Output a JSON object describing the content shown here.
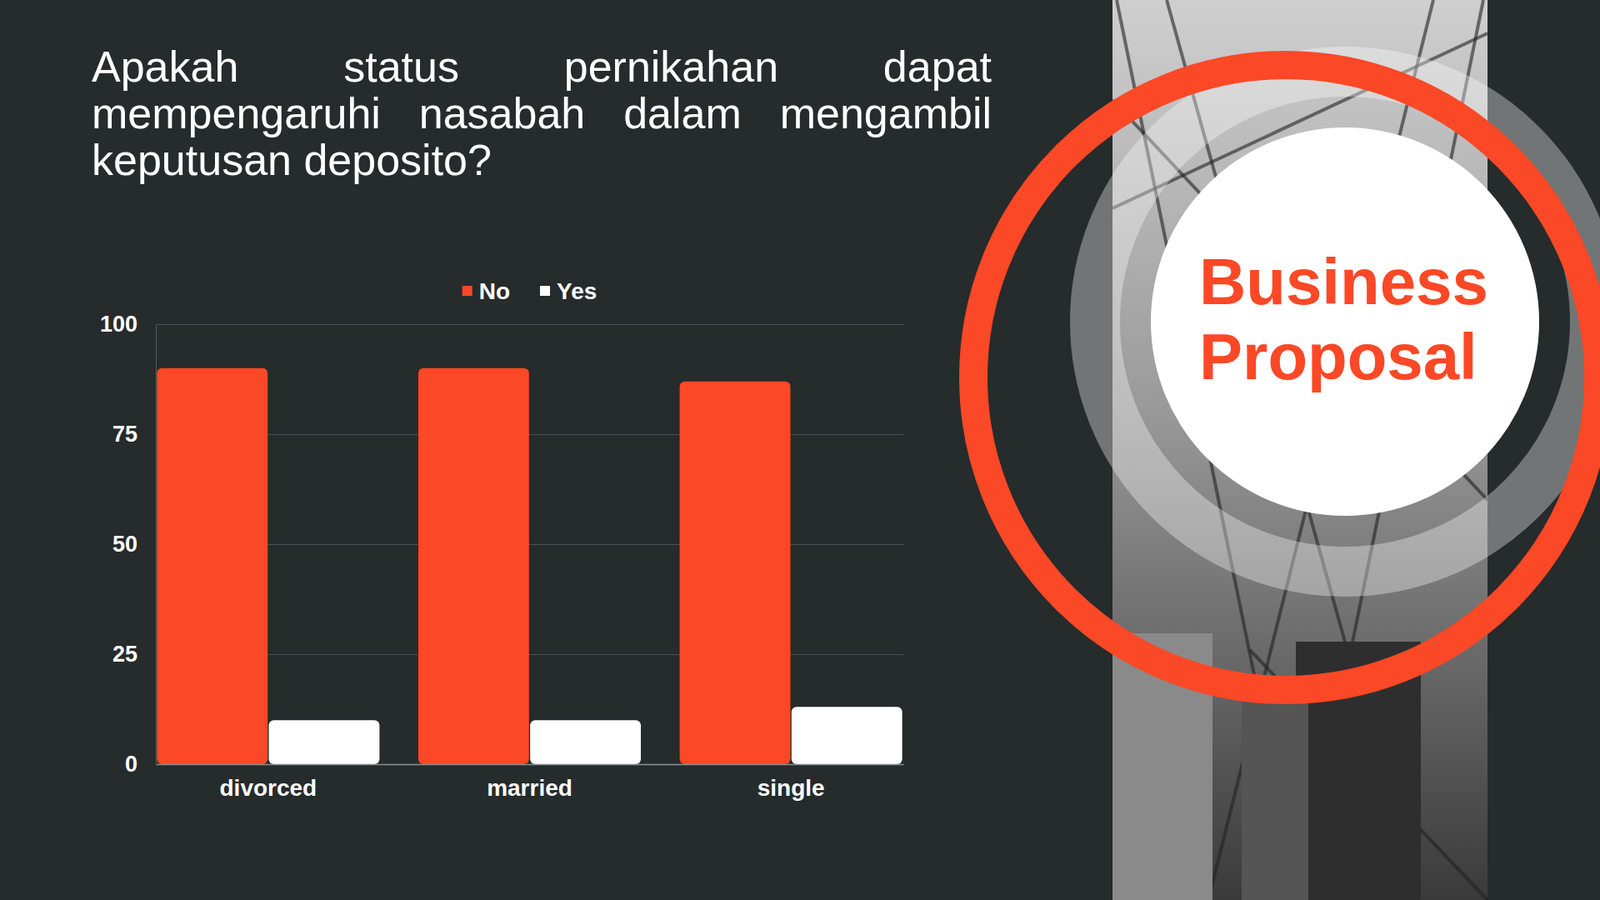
{
  "chart_data": {
    "type": "bar",
    "title": "Apakah status pernikahan dapat mempengaruhi nasabah dalam mengambil keputusan deposito?",
    "categories": [
      "divorced",
      "married",
      "single"
    ],
    "series": [
      {
        "name": "No",
        "color": "#fb4826",
        "values": [
          90,
          90,
          87
        ]
      },
      {
        "name": "Yes",
        "color": "#ffffff",
        "values": [
          10,
          10,
          13
        ]
      }
    ],
    "ylim": [
      0,
      100
    ],
    "yticks": [
      0,
      25,
      50,
      75,
      100
    ],
    "grid": true,
    "legend": "top"
  },
  "badge": [
    "Business",
    "Proposal"
  ]
}
